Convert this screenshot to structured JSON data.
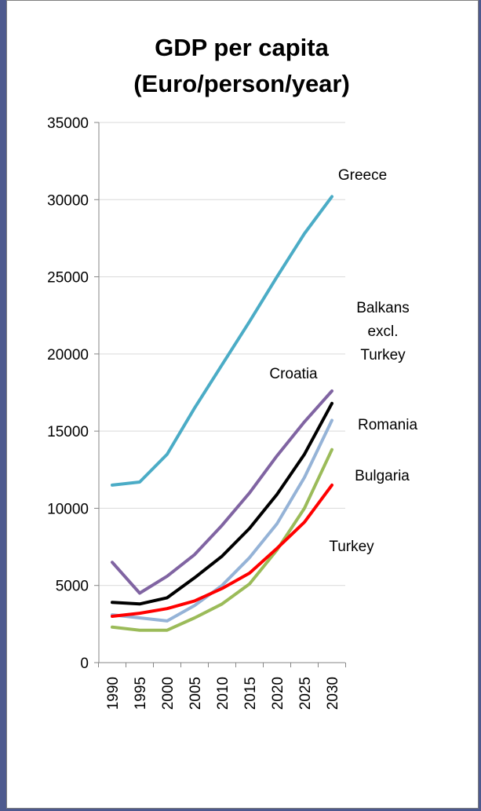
{
  "chart_data": {
    "type": "line",
    "title": [
      "GDP per capita",
      "(Euro/person/year)"
    ],
    "x": [
      1990,
      1995,
      2000,
      2005,
      2010,
      2015,
      2020,
      2025,
      2030
    ],
    "x_tick_labels": [
      "1990",
      "1995",
      "2000",
      "2005",
      "2010",
      "2015",
      "2020",
      "2025",
      "2030"
    ],
    "ylim": [
      0,
      35000
    ],
    "y_ticks": [
      "0",
      "5000",
      "10000",
      "15000",
      "20000",
      "25000",
      "30000",
      "35000"
    ],
    "grid": true,
    "legend": "none (direct labels)",
    "series": [
      {
        "name": "Greece",
        "color": "#4bacc6",
        "values": [
          11500,
          11700,
          13500,
          16500,
          19300,
          22100,
          25000,
          27800,
          30200
        ]
      },
      {
        "name": "Croatia",
        "color": "#8064a2",
        "values": [
          6500,
          4500,
          5600,
          7000,
          8900,
          11000,
          13400,
          15600,
          17600
        ]
      },
      {
        "name": "Balkans excl. Turkey",
        "color": "#000000",
        "values": [
          3900,
          3800,
          4200,
          5500,
          6900,
          8700,
          10900,
          13500,
          16800
        ]
      },
      {
        "name": "Romania",
        "color": "#95b3d7",
        "values": [
          3100,
          2900,
          2700,
          3700,
          5000,
          6800,
          9000,
          12000,
          15700
        ]
      },
      {
        "name": "Bulgaria",
        "color": "#9bbb59",
        "values": [
          2300,
          2100,
          2100,
          2900,
          3800,
          5100,
          7300,
          10000,
          13800
        ]
      },
      {
        "name": "Turkey",
        "color": "#ff0000",
        "values": [
          3000,
          3200,
          3500,
          4000,
          4800,
          5800,
          7400,
          9100,
          11500
        ]
      }
    ],
    "annotations": [
      {
        "series": "Greece",
        "lines": [
          "Greece"
        ]
      },
      {
        "series": "Balkans excl. Turkey",
        "lines": [
          "Balkans",
          "excl.",
          "Turkey"
        ]
      },
      {
        "series": "Croatia",
        "lines": [
          "Croatia"
        ]
      },
      {
        "series": "Romania",
        "lines": [
          "Romania"
        ]
      },
      {
        "series": "Bulgaria",
        "lines": [
          "Bulgaria"
        ]
      },
      {
        "series": "Turkey",
        "lines": [
          "Turkey"
        ]
      }
    ]
  }
}
